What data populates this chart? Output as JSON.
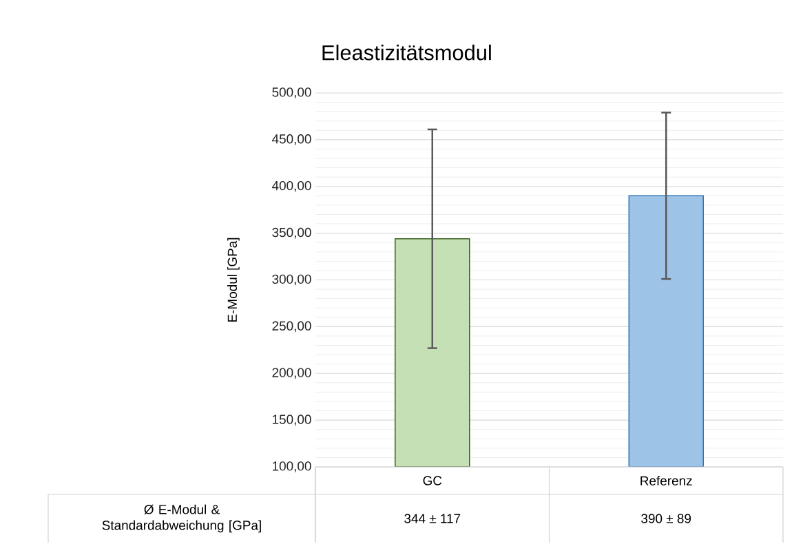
{
  "chart_data": {
    "type": "bar",
    "title": "Eleastizitätsmodul",
    "ylabel": "E-Modul [GPa]",
    "categories": [
      "GC",
      "Referenz"
    ],
    "values": [
      344,
      390
    ],
    "colors": [
      "#c5e0b4",
      "#9dc3e6"
    ],
    "errors": [
      117,
      89
    ],
    "value_labels": [
      "344 ± 117",
      "390 ± 89"
    ],
    "annotations": [
      "Ø E-Modul & Standardabweichung [GPa]"
    ],
    "ylim": [
      100,
      500
    ],
    "yticks": [
      {
        "value": 100,
        "label": "100,00"
      },
      {
        "value": 150,
        "label": "150,00"
      },
      {
        "value": 200,
        "label": "200,00"
      },
      {
        "value": 250,
        "label": "250,00"
      },
      {
        "value": 300,
        "label": "300,00"
      },
      {
        "value": 350,
        "label": "350,00"
      },
      {
        "value": 400,
        "label": "400,00"
      },
      {
        "value": 450,
        "label": "450,00"
      },
      {
        "value": 500,
        "label": "500,00"
      }
    ],
    "grid": "y"
  }
}
